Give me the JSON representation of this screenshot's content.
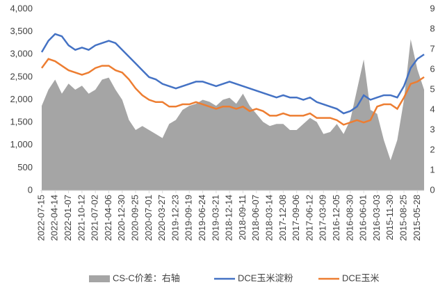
{
  "chart_data": {
    "type": "line",
    "categories": [
      "2022-07-15",
      null,
      "2022-04-14",
      null,
      "2022-01-07",
      null,
      "2021-10-12",
      null,
      "2021-07-02",
      null,
      "2021-04-06",
      null,
      "2020-12-30",
      null,
      "2020-09-25",
      null,
      "2020-07-01",
      null,
      "2020-03-27",
      null,
      "2019-12-23",
      null,
      "2019-09-19",
      null,
      "2019-06-24",
      null,
      "2019-03-21",
      null,
      "2018-12-14",
      null,
      "2018-09-11",
      null,
      "2018-06-07",
      null,
      "2018-03-14",
      null,
      "2017-12-08",
      null,
      "2017-09-06",
      null,
      "2017-06-12",
      null,
      "2017-03-09",
      null,
      "2016-12-05",
      null,
      "2016-08-30",
      null,
      "2016-06-01",
      null,
      "2016-03-03",
      null,
      "2015-11-30",
      null,
      "2015-08-25",
      null,
      "2015-05-28",
      null
    ],
    "series": [
      {
        "name": "CS-C价差：右轴",
        "color": "#a5a5a5",
        "axis": "y2",
        "kind": "area",
        "values": [
          4.2,
          5,
          5.5,
          4.8,
          5.3,
          5,
          5.2,
          4.8,
          5,
          5.5,
          5.6,
          5,
          4.5,
          3.5,
          3,
          3.2,
          3,
          2.8,
          2.6,
          3.3,
          3.5,
          4,
          4.2,
          4.3,
          4.5,
          4.4,
          4.2,
          4.5,
          4.6,
          4.3,
          4.8,
          4.2,
          3.8,
          3.4,
          3.2,
          3.3,
          3.3,
          3,
          3,
          3.3,
          3.6,
          3.4,
          2.8,
          2.9,
          3.3,
          2.8,
          3.5,
          5,
          6.5,
          4,
          3.8,
          2.5,
          1.5,
          2.5,
          4.5,
          7.5,
          6,
          5
        ]
      },
      {
        "name": "DCE玉米淀粉",
        "color": "#4472c4",
        "values": [
          3050,
          3300,
          3450,
          3400,
          3200,
          3100,
          3150,
          3100,
          3200,
          3250,
          3300,
          3250,
          3100,
          2950,
          2800,
          2650,
          2500,
          2450,
          2350,
          2300,
          2250,
          2300,
          2350,
          2400,
          2400,
          2350,
          2300,
          2350,
          2400,
          2350,
          2300,
          2250,
          2200,
          2150,
          2100,
          2050,
          2100,
          2050,
          2050,
          2000,
          2050,
          1950,
          1900,
          1850,
          1800,
          1700,
          1750,
          1850,
          2100,
          2000,
          2050,
          2100,
          2100,
          2050,
          2300,
          2700,
          2900,
          3000
        ]
      },
      {
        "name": "DCE玉米",
        "color": "#ed7d31",
        "values": [
          2700,
          2900,
          2850,
          2750,
          2650,
          2600,
          2550,
          2600,
          2700,
          2750,
          2750,
          2650,
          2600,
          2450,
          2250,
          2100,
          2000,
          1950,
          1950,
          1850,
          1850,
          1900,
          1900,
          1950,
          1900,
          1850,
          1800,
          1850,
          1850,
          1800,
          1850,
          1750,
          1800,
          1750,
          1650,
          1650,
          1700,
          1650,
          1650,
          1650,
          1700,
          1600,
          1600,
          1600,
          1550,
          1450,
          1500,
          1550,
          1500,
          1550,
          1850,
          1900,
          1900,
          1800,
          2050,
          2350,
          2400,
          2500
        ]
      }
    ],
    "ylim": [
      0,
      4000
    ],
    "yticks": [
      0,
      {
        "value": 500,
        "label": "500"
      },
      {
        "value": 1000,
        "label": "1,000"
      },
      {
        "value": 1500,
        "label": "1,500"
      },
      {
        "value": 2000,
        "label": "2,000"
      },
      {
        "value": 2500,
        "label": "2,500"
      },
      {
        "value": 3000,
        "label": "3,000"
      },
      {
        "value": 3500,
        "label": "3,500"
      },
      {
        "value": 4000,
        "label": "4,000"
      }
    ],
    "y2lim": [
      0,
      9
    ],
    "y2ticks": [
      0,
      1,
      2,
      3,
      4,
      5,
      6,
      7,
      8,
      9
    ],
    "legend": "bottom"
  }
}
